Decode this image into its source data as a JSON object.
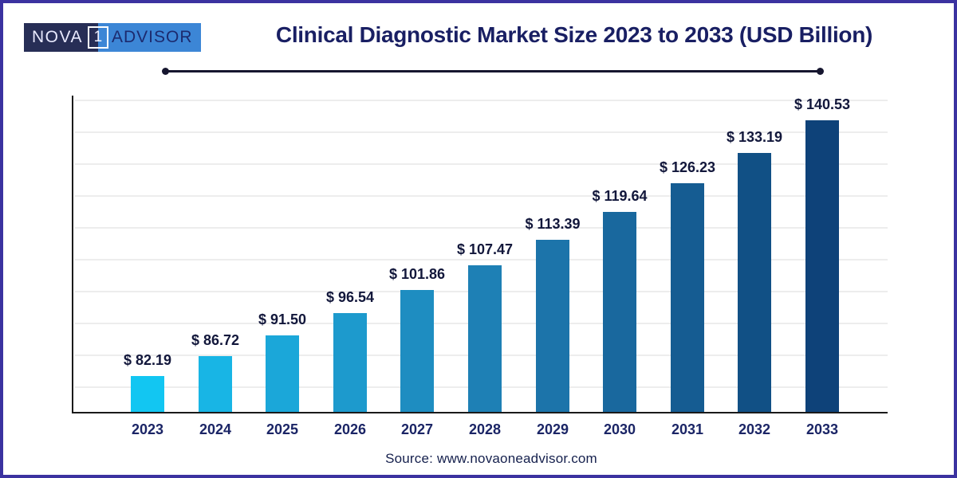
{
  "header": {
    "logo": {
      "part_nova": "NOVA",
      "part_one": "1",
      "part_advisor": "ADVISOR"
    },
    "title": "Clinical Diagnostic Market Size 2023 to 2033 (USD Billion)"
  },
  "footer": {
    "source": "Source: www.novaoneadvisor.com"
  },
  "chart_data": {
    "type": "bar",
    "title": "Clinical Diagnostic Market Size 2023 to 2033 (USD Billion)",
    "unit": "USD Billion",
    "categories": [
      "2023",
      "2024",
      "2025",
      "2026",
      "2027",
      "2028",
      "2029",
      "2030",
      "2031",
      "2032",
      "2033"
    ],
    "values": [
      82.19,
      86.72,
      91.5,
      96.54,
      101.86,
      107.47,
      113.39,
      119.64,
      126.23,
      133.19,
      140.53
    ],
    "value_labels": [
      "$ 82.19",
      "$ 86.72",
      "$ 91.50",
      "$ 96.54",
      "$ 101.86",
      "$ 107.47",
      "$ 113.39",
      "$ 119.64",
      "$ 126.23",
      "$ 133.19",
      "$ 140.53"
    ],
    "bar_colors": [
      "#12c6f2",
      "#18b5e5",
      "#1ba7d9",
      "#1d9acd",
      "#1e8dc1",
      "#1e80b5",
      "#1c74aa",
      "#19689e",
      "#155c92",
      "#115085",
      "#0e4279"
    ],
    "xlabel": "",
    "ylabel": "",
    "ylim": [
      74,
      146.6
    ],
    "y_axis_labels_visible": false,
    "grid": "horizontal",
    "legend": "none"
  },
  "theme": {
    "frame_border": "#3b32a0",
    "title_color": "#191f63",
    "value_label_color": "#12173b",
    "tick_label_color": "#1b2566",
    "source_color": "#15204d",
    "axis_color": "#1a1a1a",
    "gridline_color": "#ededed",
    "underline_color": "#16162f",
    "logo_left_bg": "#272e56",
    "logo_left_text": "#e9eaff",
    "logo_right_bg": "#3c86d6",
    "logo_right_text": "#1c2a6e",
    "logo_one_box_border": "#ffffff"
  }
}
